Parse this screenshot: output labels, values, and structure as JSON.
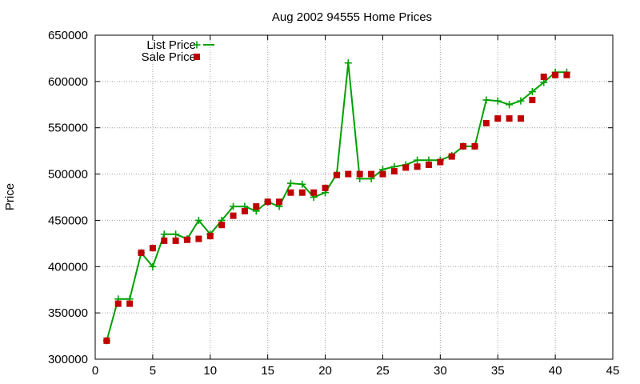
{
  "chart_data": {
    "type": "line",
    "title": "Aug 2002 94555 Home Prices",
    "xlabel": "",
    "ylabel": "Price",
    "xlim": [
      0,
      45
    ],
    "ylim": [
      300000,
      650000
    ],
    "x_ticks": [
      0,
      5,
      10,
      15,
      20,
      25,
      30,
      35,
      40,
      45
    ],
    "y_ticks": [
      300000,
      350000,
      400000,
      450000,
      500000,
      550000,
      600000,
      650000
    ],
    "grid": true,
    "legend_position": "top-left",
    "series": [
      {
        "name": "List Price",
        "style": "line-with-plus-markers",
        "color": "#00a000",
        "points": [
          [
            1,
            320000
          ],
          [
            2,
            365000
          ],
          [
            3,
            365000
          ],
          [
            4,
            415000
          ],
          [
            5,
            400000
          ],
          [
            6,
            435000
          ],
          [
            7,
            435000
          ],
          [
            8,
            430000
          ],
          [
            9,
            450000
          ],
          [
            10,
            435000
          ],
          [
            11,
            450000
          ],
          [
            12,
            465000
          ],
          [
            13,
            465000
          ],
          [
            14,
            460000
          ],
          [
            15,
            470000
          ],
          [
            16,
            465000
          ],
          [
            17,
            490000
          ],
          [
            18,
            489000
          ],
          [
            19,
            475000
          ],
          [
            20,
            480000
          ],
          [
            21,
            500000
          ],
          [
            22,
            620000
          ],
          [
            23,
            495000
          ],
          [
            24,
            495000
          ],
          [
            25,
            505000
          ],
          [
            26,
            508000
          ],
          [
            27,
            510000
          ],
          [
            28,
            515000
          ],
          [
            29,
            515000
          ],
          [
            30,
            515000
          ],
          [
            31,
            520000
          ],
          [
            32,
            530000
          ],
          [
            33,
            530000
          ],
          [
            34,
            580000
          ],
          [
            35,
            579000
          ],
          [
            36,
            575000
          ],
          [
            37,
            579000
          ],
          [
            38,
            589000
          ],
          [
            39,
            599000
          ],
          [
            40,
            610000
          ],
          [
            41,
            610000
          ]
        ]
      },
      {
        "name": "Sale Price",
        "style": "square-markers",
        "color": "#c00000",
        "points": [
          [
            1,
            320000
          ],
          [
            2,
            360000
          ],
          [
            3,
            360000
          ],
          [
            4,
            415000
          ],
          [
            5,
            420000
          ],
          [
            6,
            428000
          ],
          [
            7,
            428000
          ],
          [
            8,
            429000
          ],
          [
            9,
            430000
          ],
          [
            10,
            433000
          ],
          [
            11,
            445000
          ],
          [
            12,
            455000
          ],
          [
            13,
            460000
          ],
          [
            14,
            465000
          ],
          [
            15,
            470000
          ],
          [
            16,
            470000
          ],
          [
            17,
            480000
          ],
          [
            18,
            480000
          ],
          [
            19,
            480000
          ],
          [
            20,
            485000
          ],
          [
            21,
            499000
          ],
          [
            22,
            500000
          ],
          [
            23,
            500000
          ],
          [
            24,
            500000
          ],
          [
            25,
            500000
          ],
          [
            26,
            503000
          ],
          [
            27,
            507000
          ],
          [
            28,
            508000
          ],
          [
            29,
            510000
          ],
          [
            30,
            513000
          ],
          [
            31,
            519000
          ],
          [
            32,
            530000
          ],
          [
            33,
            530000
          ],
          [
            34,
            555000
          ],
          [
            35,
            560000
          ],
          [
            36,
            560000
          ],
          [
            37,
            560000
          ],
          [
            38,
            580000
          ],
          [
            39,
            605000
          ],
          [
            40,
            607000
          ],
          [
            41,
            607000
          ]
        ]
      }
    ]
  }
}
